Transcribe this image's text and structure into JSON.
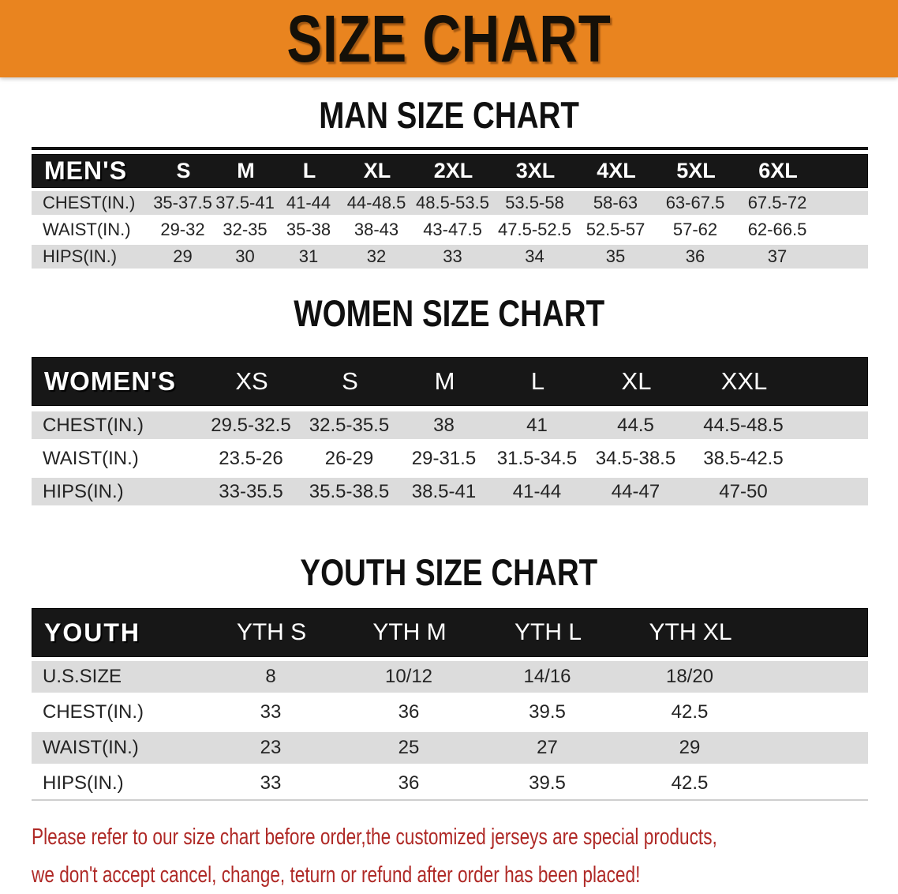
{
  "banner": {
    "title": "SIZE CHART"
  },
  "sections": [
    {
      "id": "men",
      "heading": "MAN SIZE CHART",
      "corner_label": "MEN'S",
      "sizes": [
        "S",
        "M",
        "L",
        "XL",
        "2XL",
        "3XL",
        "4XL",
        "5XL",
        "6XL"
      ],
      "rows": [
        {
          "label": "CHEST(IN.)",
          "values": [
            "35-37.5",
            "37.5-41",
            "41-44",
            "44-48.5",
            "48.5-53.5",
            "53.5-58",
            "58-63",
            "63-67.5",
            "67.5-72"
          ]
        },
        {
          "label": "WAIST(IN.)",
          "values": [
            "29-32",
            "32-35",
            "35-38",
            "38-43",
            "43-47.5",
            "47.5-52.5",
            "52.5-57",
            "57-62",
            "62-66.5"
          ]
        },
        {
          "label": "HIPS(IN.)",
          "values": [
            "29",
            "30",
            "31",
            "32",
            "33",
            "34",
            "35",
            "36",
            "37"
          ]
        }
      ]
    },
    {
      "id": "women",
      "heading": "WOMEN SIZE CHART",
      "corner_label": "WOMEN'S",
      "sizes": [
        "XS",
        "S",
        "M",
        "L",
        "XL",
        "XXL"
      ],
      "rows": [
        {
          "label": "CHEST(IN.)",
          "values": [
            "29.5-32.5",
            "32.5-35.5",
            "38",
            "41",
            "44.5",
            "44.5-48.5"
          ]
        },
        {
          "label": "WAIST(IN.)",
          "values": [
            "23.5-26",
            "26-29",
            "29-31.5",
            "31.5-34.5",
            "34.5-38.5",
            "38.5-42.5"
          ]
        },
        {
          "label": "HIPS(IN.)",
          "values": [
            "33-35.5",
            "35.5-38.5",
            "38.5-41",
            "41-44",
            "44-47",
            "47-50"
          ]
        }
      ]
    },
    {
      "id": "youth",
      "heading": "YOUTH SIZE CHART",
      "corner_label": "YOUTH",
      "sizes": [
        "YTH S",
        "YTH M",
        "YTH L",
        "YTH XL"
      ],
      "rows": [
        {
          "label": "U.S.SIZE",
          "values": [
            "8",
            "10/12",
            "14/16",
            "18/20"
          ]
        },
        {
          "label": "CHEST(IN.)",
          "values": [
            "33",
            "36",
            "39.5",
            "42.5"
          ]
        },
        {
          "label": "WAIST(IN.)",
          "values": [
            "23",
            "25",
            "27",
            "29"
          ]
        },
        {
          "label": "HIPS(IN.)",
          "values": [
            "33",
            "36",
            "39.5",
            "42.5"
          ]
        }
      ]
    }
  ],
  "disclaimer": {
    "line1": "Please refer to our size chart before order,the customized jerseys are special products,",
    "line2": "we don't accept cancel, change, teturn or refund after order has been placed!"
  },
  "colors": {
    "banner_bg": "#E9841F",
    "header_bg": "#171717",
    "row_alt_bg": "#DCDCDC",
    "disclaimer_red": "#AF2926"
  }
}
